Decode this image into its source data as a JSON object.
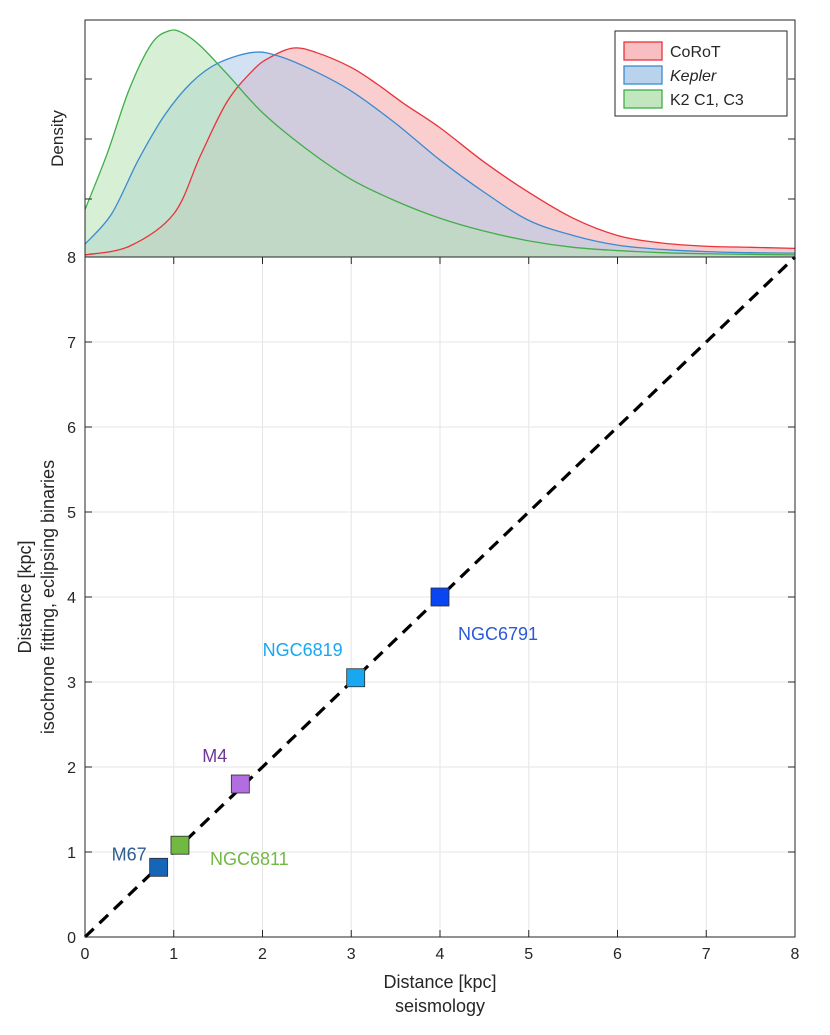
{
  "chart_data": [
    {
      "type": "area",
      "title": "",
      "ylabel": "Density",
      "xlim": [
        0,
        8
      ],
      "yticks": [
        "",
        "",
        "",
        "8"
      ],
      "legend_position": "top-right",
      "series": [
        {
          "name": "CoRoT",
          "italic": false,
          "stroke": "#e8333a",
          "fill": "#f7b3b6",
          "fill_opacity": 0.65,
          "x": [
            0,
            0.5,
            1,
            1.3,
            1.6,
            1.9,
            2.1,
            2.35,
            2.6,
            3,
            3.3,
            3.6,
            4,
            4.5,
            5,
            5.5,
            6,
            6.5,
            7,
            7.5,
            8
          ],
          "y": [
            0.01,
            0.05,
            0.2,
            0.47,
            0.72,
            0.87,
            0.93,
            0.97,
            0.95,
            0.88,
            0.8,
            0.71,
            0.6,
            0.44,
            0.3,
            0.18,
            0.1,
            0.065,
            0.05,
            0.045,
            0.04
          ]
        },
        {
          "name": "Kepler",
          "italic": true,
          "stroke": "#3a8bd0",
          "fill": "#aecbea",
          "fill_opacity": 0.55,
          "x": [
            0,
            0.3,
            0.6,
            0.9,
            1.2,
            1.5,
            1.9,
            2.2,
            2.6,
            3,
            3.5,
            4,
            4.5,
            5,
            5.5,
            6,
            6.5,
            7,
            7.5,
            8
          ],
          "y": [
            0.06,
            0.2,
            0.45,
            0.66,
            0.81,
            0.9,
            0.95,
            0.93,
            0.86,
            0.77,
            0.62,
            0.45,
            0.3,
            0.17,
            0.1,
            0.055,
            0.035,
            0.025,
            0.02,
            0.018
          ]
        },
        {
          "name": "K2 C1, C3",
          "italic": false,
          "stroke": "#3fae49",
          "fill": "#b7e2b3",
          "fill_opacity": 0.55,
          "x": [
            0,
            0.25,
            0.5,
            0.75,
            0.95,
            1.1,
            1.3,
            1.6,
            2,
            2.5,
            3,
            3.5,
            4,
            4.5,
            5,
            5.5,
            6,
            6.5,
            7,
            7.5,
            8
          ],
          "y": [
            0.22,
            0.48,
            0.78,
            0.99,
            1.05,
            1.04,
            0.98,
            0.85,
            0.67,
            0.5,
            0.36,
            0.26,
            0.18,
            0.12,
            0.075,
            0.045,
            0.03,
            0.02,
            0.015,
            0.012,
            0.01
          ]
        }
      ]
    },
    {
      "type": "scatter",
      "title": "",
      "xlabel": "Distance [kpc]",
      "xlabel2": "seismology",
      "ylabel": "Distance [kpc]",
      "ylabel2": "isochrone fitting, eclipsing binaries",
      "xlim": [
        0,
        8
      ],
      "ylim": [
        0,
        8
      ],
      "xticks": [
        0,
        1,
        2,
        3,
        4,
        5,
        6,
        7,
        8
      ],
      "yticks": [
        0,
        1,
        2,
        3,
        4,
        5,
        6,
        7
      ],
      "grid": true,
      "reference_line": {
        "x": [
          0,
          8
        ],
        "y": [
          0,
          8
        ],
        "style": "dashed",
        "color": "#000000"
      },
      "points": [
        {
          "name": "M67",
          "x": 0.83,
          "y": 0.82,
          "color": "#1565b8",
          "label_color": "#2d5d91",
          "label_side": "left"
        },
        {
          "name": "NGC6811",
          "x": 1.07,
          "y": 1.08,
          "color": "#72b943",
          "label_color": "#72b943",
          "label_side": "below-right"
        },
        {
          "name": "M4",
          "x": 1.75,
          "y": 1.8,
          "color": "#b26ee0",
          "label_color": "#6e3696",
          "label_side": "above-left"
        },
        {
          "name": "NGC6819",
          "x": 3.05,
          "y": 3.05,
          "color": "#1aa7f2",
          "label_color": "#1aa7f2",
          "label_side": "above-left"
        },
        {
          "name": "NGC6791",
          "x": 4.0,
          "y": 4.0,
          "color": "#0a45f2",
          "label_color": "#2b58d6",
          "label_side": "below-right"
        }
      ]
    }
  ]
}
